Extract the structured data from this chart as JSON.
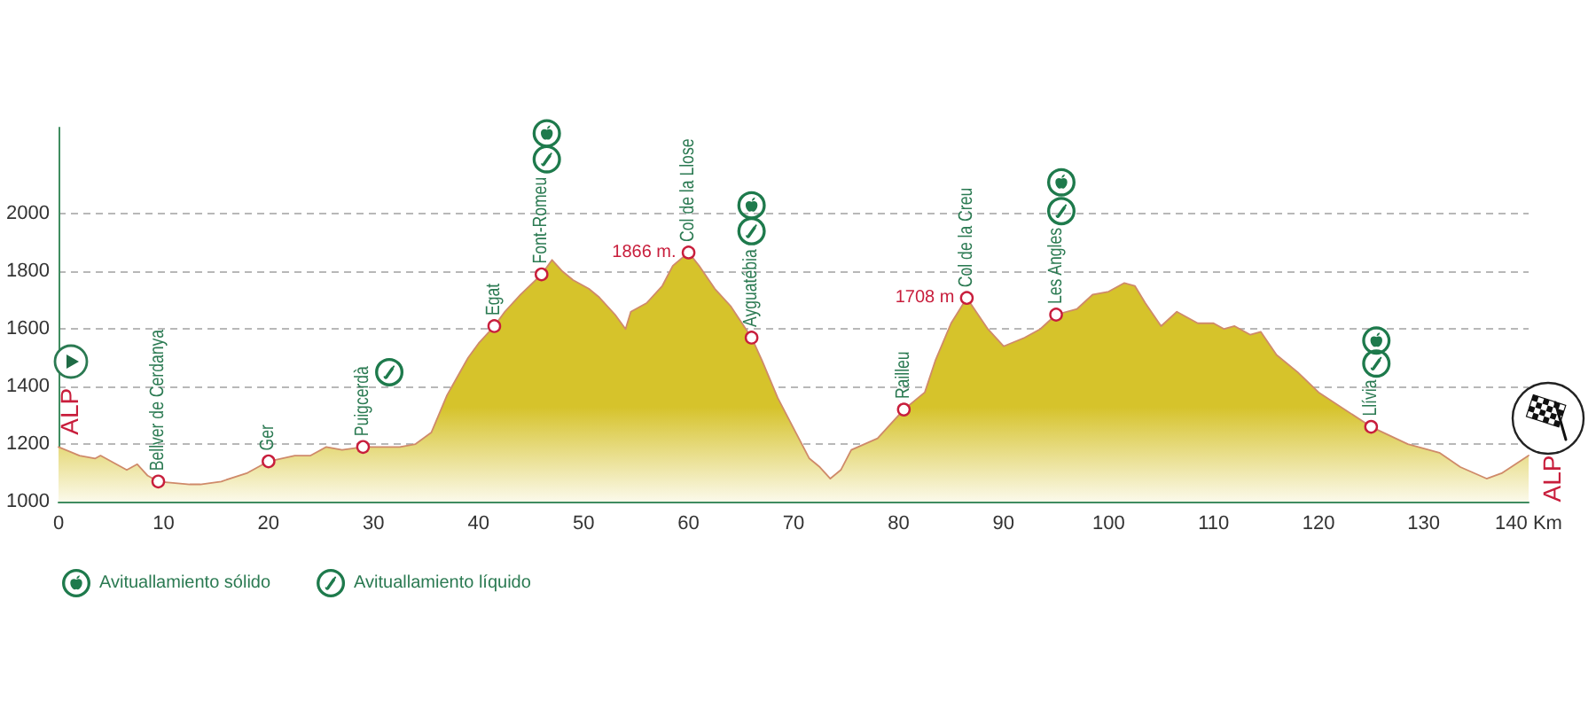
{
  "chart_data": {
    "type": "area",
    "xlim": [
      0,
      140
    ],
    "xticks": [
      0,
      10,
      20,
      30,
      40,
      50,
      60,
      70,
      80,
      90,
      100,
      110,
      120,
      130,
      {
        "value": 140,
        "label": "140 Km"
      }
    ],
    "ylim": [
      1000,
      2300
    ],
    "yticks": [
      1000,
      1200,
      1400,
      1600,
      1800,
      2000
    ],
    "grid": "y",
    "legend": "bottom left",
    "series": [
      {
        "color": "#d6c32b",
        "x": [
          0,
          2,
          3.5,
          4,
          6.5,
          7.5,
          8.5,
          9.5,
          12.5,
          13.5,
          15.5,
          18,
          20,
          22.5,
          24,
          25.5,
          27,
          29,
          32.5,
          34,
          35.5,
          37,
          39,
          40,
          41.5,
          42.5,
          44,
          46,
          47,
          48,
          49,
          50.5,
          51.5,
          53,
          54,
          54.5,
          56,
          57.5,
          58.5,
          60,
          61,
          62.5,
          64,
          66,
          67,
          68.5,
          70.5,
          71.5,
          72.5,
          73.5,
          74.5,
          75.5,
          78,
          80.5,
          82.5,
          83.5,
          85,
          86.5,
          88.5,
          90,
          92,
          93.5,
          95,
          97,
          98.5,
          100,
          101.5,
          102.5,
          103.5,
          105,
          106.5,
          108.5,
          110,
          111,
          112,
          113.5,
          114.5,
          116,
          118,
          120,
          125,
          128.5,
          131.5,
          133.5,
          136,
          137.5,
          140
        ],
        "values": [
          1190,
          1160,
          1150,
          1160,
          1110,
          1130,
          1090,
          1070,
          1060,
          1060,
          1070,
          1100,
          1140,
          1160,
          1160,
          1190,
          1180,
          1190,
          1190,
          1200,
          1240,
          1370,
          1500,
          1550,
          1610,
          1660,
          1720,
          1790,
          1840,
          1800,
          1770,
          1740,
          1710,
          1650,
          1600,
          1660,
          1690,
          1750,
          1820,
          1866,
          1820,
          1740,
          1680,
          1570,
          1490,
          1360,
          1220,
          1150,
          1120,
          1080,
          1110,
          1180,
          1220,
          1320,
          1380,
          1490,
          1620,
          1708,
          1600,
          1540,
          1570,
          1600,
          1650,
          1670,
          1720,
          1730,
          1760,
          1750,
          1690,
          1610,
          1660,
          1620,
          1620,
          1600,
          1610,
          1580,
          1590,
          1510,
          1450,
          1380,
          1260,
          1200,
          1170,
          1120,
          1080,
          1100,
          1160
        ],
        "value_labels": [
          null,
          null,
          null,
          null,
          null,
          null,
          null,
          null,
          null,
          null,
          null,
          null,
          null,
          null,
          null,
          null,
          null,
          null,
          null,
          null,
          null,
          null,
          null,
          null,
          null,
          null,
          null,
          null,
          null,
          null,
          null,
          null,
          null,
          null,
          null,
          null,
          null,
          null,
          null,
          "1866 m.",
          null,
          null,
          null,
          null,
          null,
          null,
          null,
          null,
          null,
          null,
          null,
          null,
          null,
          null,
          null,
          null,
          null,
          "1708 m",
          null,
          null,
          null,
          null,
          null,
          null,
          null,
          null,
          null,
          null,
          null,
          null,
          null,
          null,
          null,
          null,
          null,
          null,
          null,
          null,
          null,
          null,
          null,
          null,
          null,
          null,
          null,
          null,
          null
        ]
      },
      {
        "type": "scatter",
        "name": "Avituallamiento sólido",
        "color": "#1e7a4c",
        "x": [
          46.5,
          66,
          95.5,
          125.5
        ],
        "values": [
          2280,
          2030,
          2110,
          1560
        ]
      },
      {
        "type": "scatter",
        "name": "Avituallamiento líquido",
        "color": "#1e7a4c",
        "x": [
          31.5,
          46.5,
          66,
          95.5,
          125.5
        ],
        "values": [
          1450,
          2190,
          1940,
          2010,
          1480
        ]
      }
    ],
    "annotations": [
      {
        "text": "ALP",
        "x": 0,
        "y": 1190
      },
      {
        "text": "Bellver de Cerdanya",
        "x": 9.5,
        "y": 1070
      },
      {
        "text": "Ger",
        "x": 20,
        "y": 1140
      },
      {
        "text": "Puigcerdà",
        "x": 29,
        "y": 1190
      },
      {
        "text": "Egat",
        "x": 41.5,
        "y": 1610
      },
      {
        "text": "Font-Romeu",
        "x": 46,
        "y": 1790
      },
      {
        "text": "Col de la Llose",
        "x": 60,
        "y": 1866
      },
      {
        "text": "Ayguatébia",
        "x": 66,
        "y": 1570
      },
      {
        "text": "Railleu",
        "x": 80.5,
        "y": 1320
      },
      {
        "text": "Col de la Creu",
        "x": 86.5,
        "y": 1708
      },
      {
        "text": "Les Angles",
        "x": 95,
        "y": 1650
      },
      {
        "text": "Llívia",
        "x": 125,
        "y": 1260
      },
      {
        "text": "ALP",
        "x": 140,
        "y": 1160
      }
    ]
  }
}
